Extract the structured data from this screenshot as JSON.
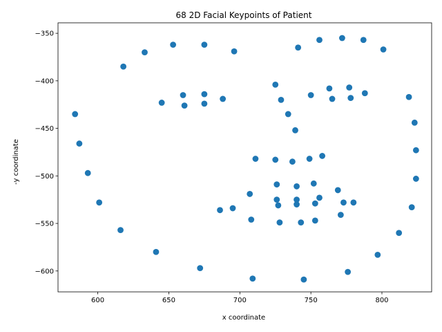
{
  "chart_data": {
    "type": "scatter",
    "title": "68 2D Facial Keypoints of Patient",
    "xlabel": "x coordinate",
    "ylabel": "-y coordinate",
    "xlim": [
      572,
      835
    ],
    "ylim": [
      -622,
      -339
    ],
    "xticks": [
      600,
      650,
      700,
      750,
      800
    ],
    "yticks": [
      -350,
      -400,
      -450,
      -500,
      -550,
      -600
    ],
    "grid": false,
    "color": "#1f77b4",
    "x": [
      584,
      587,
      593,
      601,
      616,
      641,
      672,
      709,
      745,
      776,
      797,
      812,
      821,
      824,
      824,
      823,
      819,
      618,
      633,
      653,
      675,
      696,
      741,
      756,
      772,
      787,
      801,
      725,
      729,
      734,
      739,
      711,
      725,
      737,
      749,
      758,
      645,
      660,
      661,
      675,
      675,
      688,
      750,
      763,
      765,
      777,
      778,
      788,
      686,
      695,
      707,
      726,
      740,
      752,
      769,
      780,
      773,
      753,
      740,
      727,
      708,
      728,
      743,
      753,
      771,
      726,
      740,
      756
    ],
    "y": [
      -435,
      -466,
      -497,
      -528,
      -557,
      -580,
      -597,
      -608,
      -609,
      -601,
      -583,
      -560,
      -533,
      -503,
      -473,
      -444,
      -417,
      -385,
      -370,
      -362,
      -362,
      -369,
      -365,
      -357,
      -355,
      -357,
      -367,
      -404,
      -420,
      -435,
      -452,
      -482,
      -483,
      -485,
      -482,
      -479,
      -423,
      -415,
      -426,
      -414,
      -424,
      -419,
      -415,
      -408,
      -419,
      -407,
      -418,
      -413,
      -536,
      -534,
      -519,
      -509,
      -511,
      -508,
      -515,
      -528,
      -528,
      -529,
      -530,
      -531,
      -546,
      -549,
      -549,
      -547,
      -541,
      -525,
      -525,
      -523
    ]
  }
}
